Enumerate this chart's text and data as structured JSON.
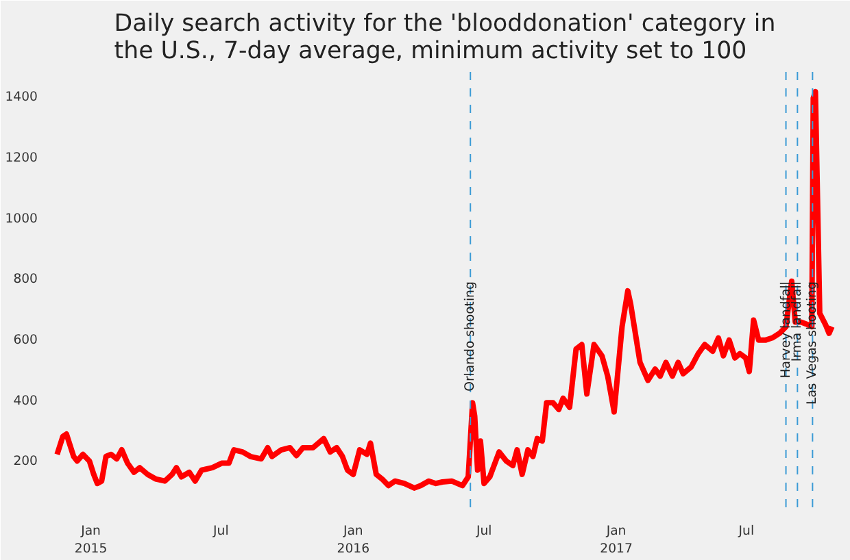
{
  "chart_data": {
    "type": "line",
    "title": "Daily search activity for the 'blooddonation' category in\nthe U.S., 7-day average, minimum activity set to 100",
    "x": [
      "2014-11-15",
      "2014-11-23",
      "2014-11-28",
      "2014-12-08",
      "2014-12-13",
      "2014-12-21",
      "2014-12-30",
      "2015-01-05",
      "2015-01-10",
      "2015-01-16",
      "2015-01-22",
      "2015-01-29",
      "2015-02-06",
      "2015-02-13",
      "2015-02-21",
      "2015-03-02",
      "2015-03-10",
      "2015-03-21",
      "2015-04-01",
      "2015-04-14",
      "2015-04-24",
      "2015-04-30",
      "2015-05-07",
      "2015-05-18",
      "2015-05-26",
      "2015-06-04",
      "2015-06-19",
      "2015-07-02",
      "2015-07-12",
      "2015-07-19",
      "2015-07-31",
      "2015-08-11",
      "2015-08-26",
      "2015-09-04",
      "2015-09-10",
      "2015-09-23",
      "2015-10-05",
      "2015-10-14",
      "2015-10-23",
      "2015-11-06",
      "2015-11-21",
      "2015-11-30",
      "2015-12-09",
      "2015-12-17",
      "2015-12-24",
      "2016-01-01",
      "2016-01-10",
      "2016-01-20",
      "2016-01-25",
      "2016-02-02",
      "2016-02-10",
      "2016-02-19",
      "2016-02-28",
      "2016-03-12",
      "2016-03-26",
      "2016-04-04",
      "2016-04-15",
      "2016-04-25",
      "2016-05-04",
      "2016-05-17",
      "2016-06-01",
      "2016-06-09",
      "2016-06-15",
      "2016-06-18",
      "2016-06-22",
      "2016-06-26",
      "2016-07-01",
      "2016-07-09",
      "2016-07-22",
      "2016-08-01",
      "2016-08-10",
      "2016-08-16",
      "2016-08-23",
      "2016-08-31",
      "2016-09-07",
      "2016-09-13",
      "2016-09-20",
      "2016-09-26",
      "2016-10-05",
      "2016-10-13",
      "2016-10-19",
      "2016-10-28",
      "2016-11-06",
      "2016-11-14",
      "2016-11-21",
      "2016-12-01",
      "2016-12-12",
      "2016-12-20",
      "2016-12-29",
      "2017-01-09",
      "2017-01-17",
      "2017-01-21",
      "2017-01-26",
      "2017-02-03",
      "2017-02-14",
      "2017-02-24",
      "2017-03-03",
      "2017-03-11",
      "2017-03-20",
      "2017-03-28",
      "2017-04-04",
      "2017-04-15",
      "2017-04-25",
      "2017-05-04",
      "2017-05-15",
      "2017-05-23",
      "2017-05-30",
      "2017-06-07",
      "2017-06-15",
      "2017-06-22",
      "2017-06-30",
      "2017-07-05",
      "2017-07-11",
      "2017-07-18",
      "2017-07-28",
      "2017-08-06",
      "2017-08-16",
      "2017-08-25",
      "2017-09-02",
      "2017-09-07",
      "2017-09-15",
      "2017-09-24",
      "2017-09-30",
      "2017-10-02",
      "2017-10-05",
      "2017-10-11",
      "2017-10-19",
      "2017-10-24",
      "2017-10-28"
    ],
    "series": [
      {
        "color": "#ff0000",
        "values": [
          219,
          278,
          286,
          212,
          197,
          219,
          197,
          153,
          123,
          131,
          212,
          219,
          204,
          234,
          190,
          160,
          175,
          153,
          138,
          131,
          153,
          175,
          145,
          160,
          131,
          167,
          175,
          190,
          190,
          234,
          227,
          212,
          204,
          241,
          212,
          234,
          241,
          215,
          241,
          241,
          271,
          227,
          241,
          212,
          167,
          153,
          234,
          219,
          256,
          153,
          138,
          116,
          131,
          123,
          108,
          116,
          131,
          123,
          128,
          131,
          116,
          145,
          389,
          345,
          167,
          263,
          123,
          145,
          227,
          197,
          182,
          234,
          153,
          234,
          212,
          271,
          263,
          389,
          389,
          367,
          404,
          374,
          566,
          581,
          418,
          581,
          544,
          477,
          359,
          640,
          758,
          714,
          640,
          522,
          463,
          500,
          477,
          522,
          477,
          522,
          485,
          507,
          551,
          581,
          559,
          603,
          544,
          596,
          537,
          551,
          537,
          492,
          662,
          596,
          596,
          603,
          618,
          640,
          790,
          655,
          655,
          647,
          640,
          1393,
          1415,
          684,
          647,
          618,
          640
        ]
      }
    ],
    "xlim": [
      "2014-11-09",
      "2017-11-04"
    ],
    "ylim": [
      40,
      1480
    ],
    "xticks": [
      {
        "value": "2015-01-01",
        "label": "Jan\n2015"
      },
      {
        "value": "2015-07-01",
        "label": "Jul"
      },
      {
        "value": "2016-01-01",
        "label": "Jan\n2016"
      },
      {
        "value": "2016-07-01",
        "label": "Jul"
      },
      {
        "value": "2017-01-01",
        "label": "Jan\n2017"
      },
      {
        "value": "2017-07-01",
        "label": "Jul"
      }
    ],
    "yticks": [
      200,
      400,
      600,
      800,
      1000,
      1200,
      1400
    ],
    "ref_lines": [
      {
        "axis": "x",
        "value": "2016-06-12",
        "label": "Orlando shooting",
        "color": "#3b9bd6",
        "line_style": "dashed"
      },
      {
        "axis": "x",
        "value": "2017-08-25",
        "label": "Harvey landfall",
        "color": "#3b9bd6",
        "line_style": "dashed"
      },
      {
        "axis": "x",
        "value": "2017-09-10",
        "label": "Irma landfall",
        "color": "#3b9bd6",
        "line_style": "dashed"
      },
      {
        "axis": "x",
        "value": "2017-10-01",
        "label": "Las Vegas shooting",
        "color": "#3b9bd6",
        "line_style": "dashed"
      }
    ],
    "grid": false,
    "marker": "none",
    "line_style": "solid"
  }
}
